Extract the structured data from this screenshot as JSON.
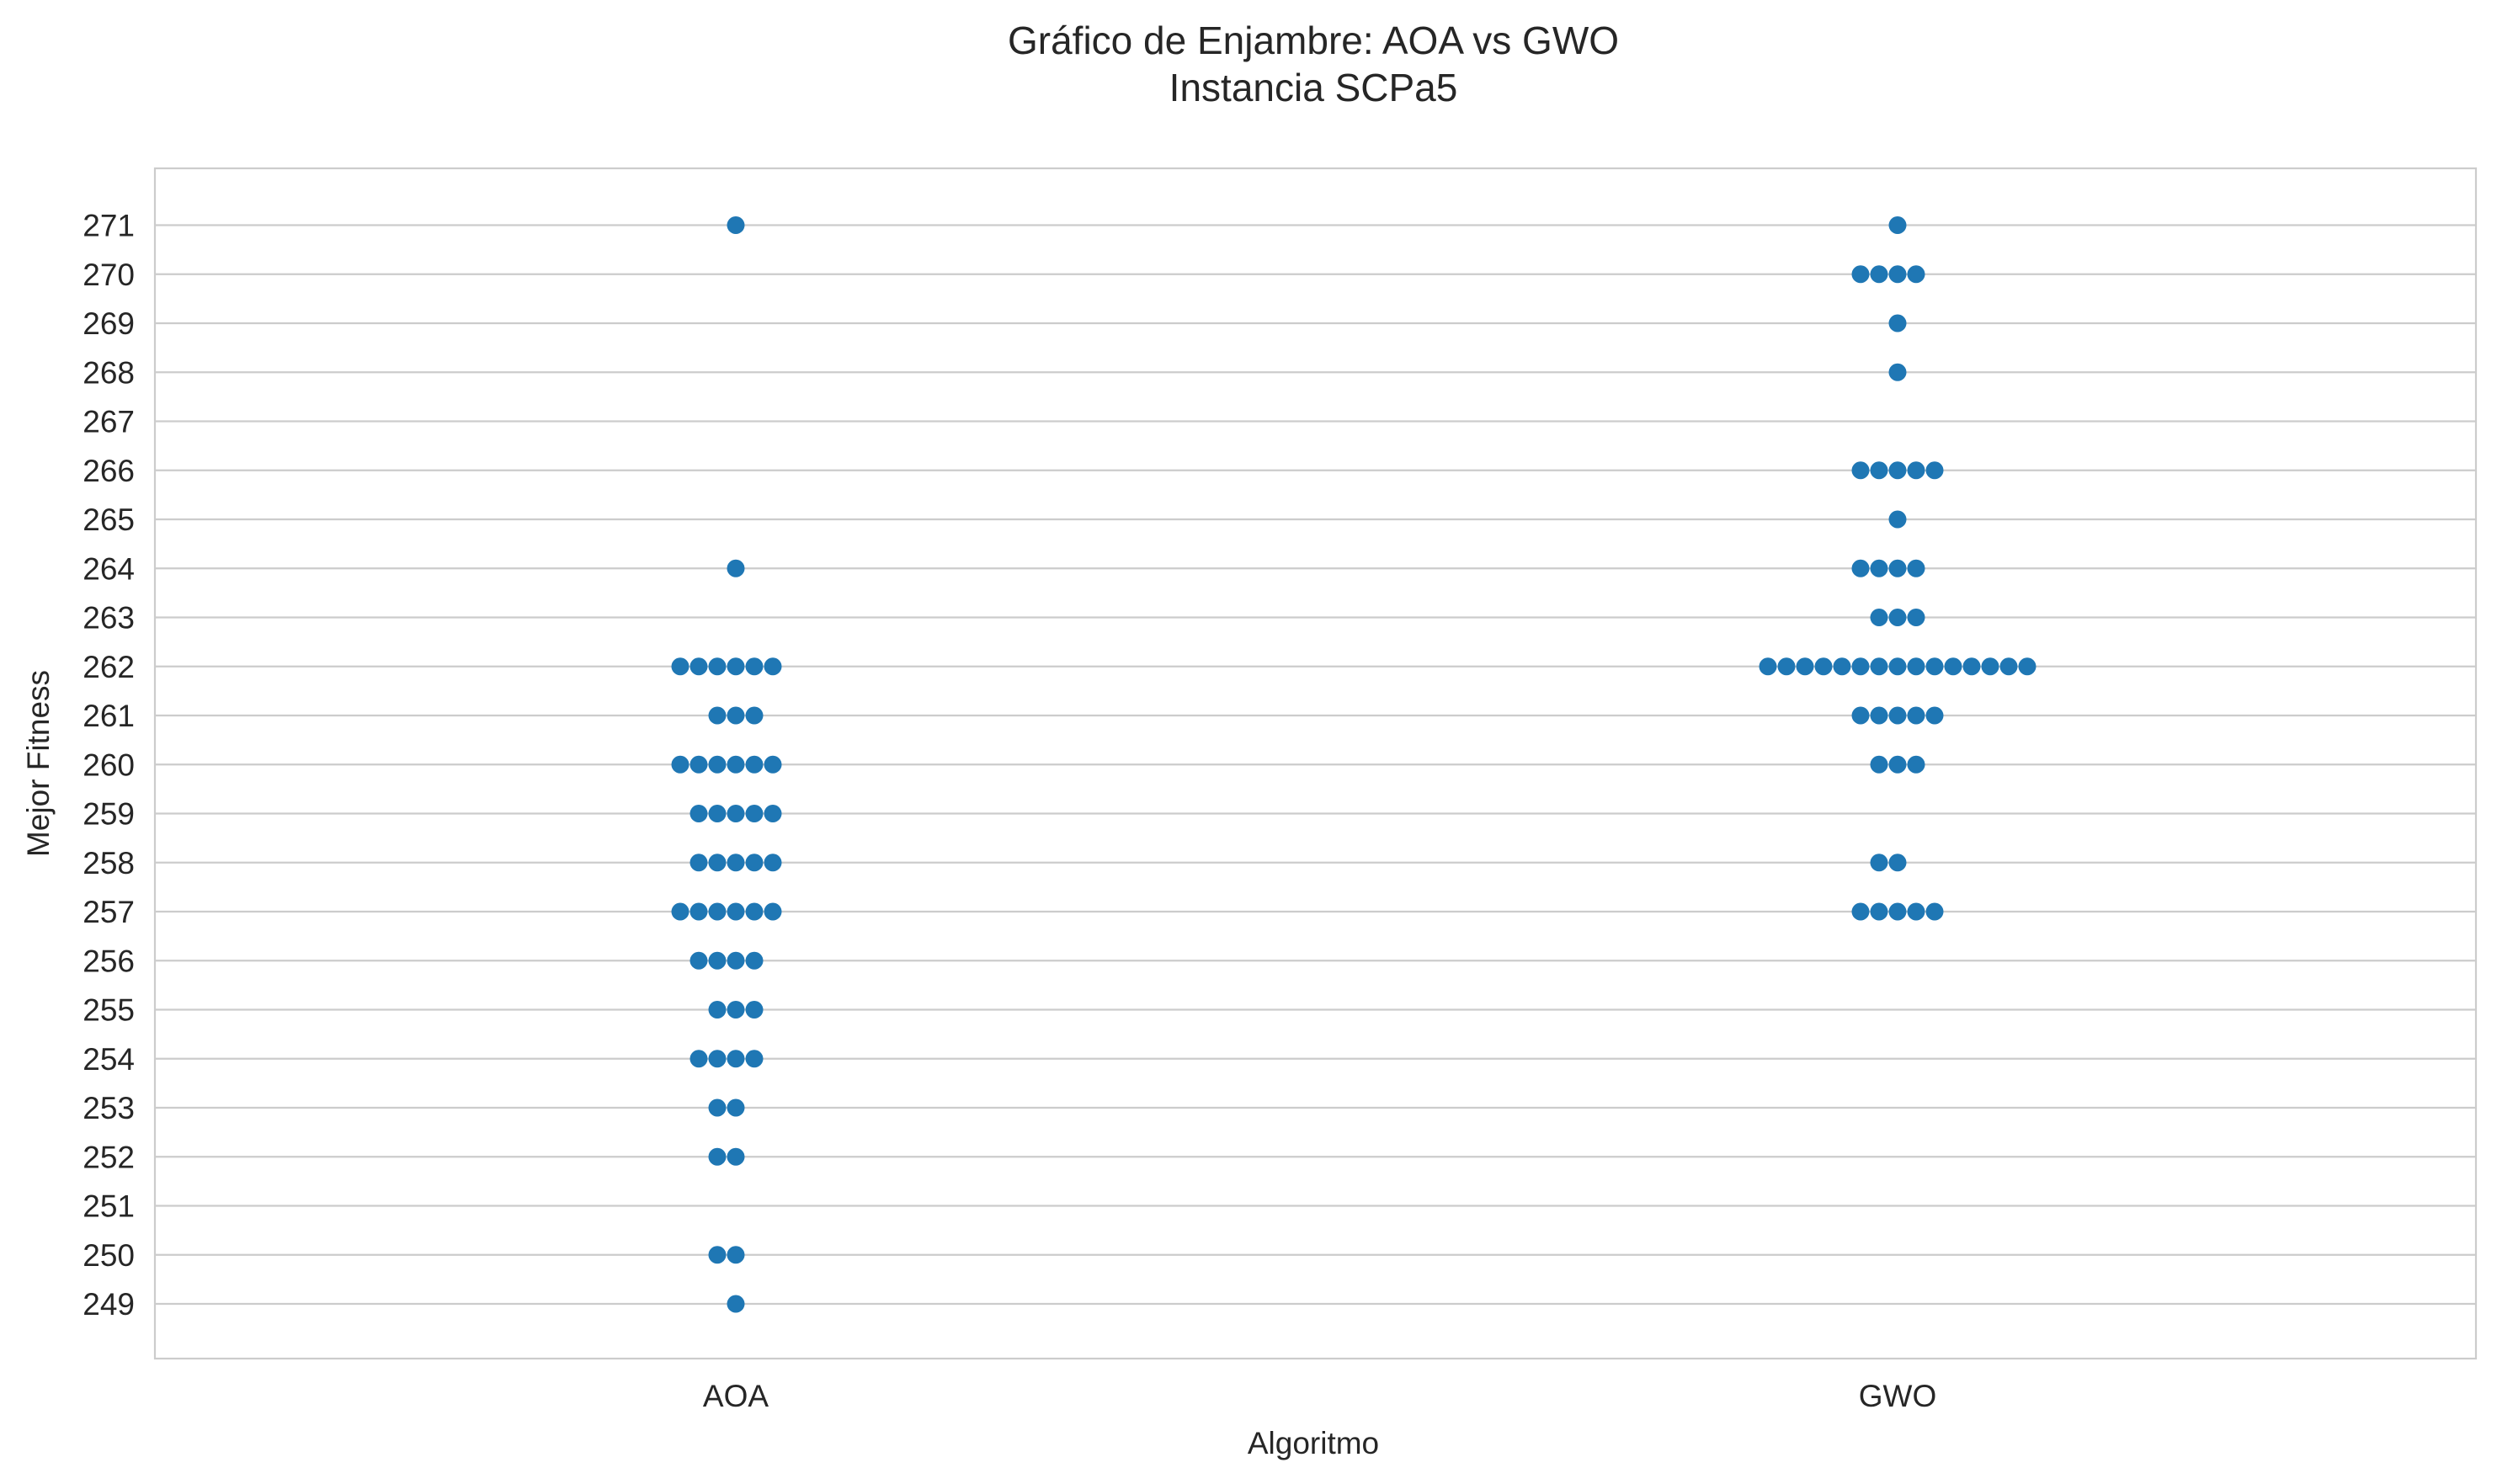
{
  "chart_data": {
    "type": "scatter",
    "style": "swarm",
    "title": "Gráfico de Enjambre: AOA vs GWO",
    "subtitle": "Instancia SCPa5",
    "xlabel": "Algoritmo",
    "ylabel": "Mejor Fitness",
    "categories": [
      "AOA",
      "GWO"
    ],
    "y_ticks": [
      249,
      250,
      251,
      252,
      253,
      254,
      255,
      256,
      257,
      258,
      259,
      260,
      261,
      262,
      263,
      264,
      265,
      266,
      267,
      268,
      269,
      270,
      271
    ],
    "ylim": [
      247.9,
      272.1
    ],
    "grid": "horizontal",
    "marker_color": "#1f77b4",
    "series": [
      {
        "category": "AOA",
        "counts": [
          {
            "y": 271,
            "n": 1
          },
          {
            "y": 264,
            "n": 1
          },
          {
            "y": 262,
            "n": 6
          },
          {
            "y": 261,
            "n": 3
          },
          {
            "y": 260,
            "n": 6
          },
          {
            "y": 259,
            "n": 5
          },
          {
            "y": 258,
            "n": 5
          },
          {
            "y": 257,
            "n": 6
          },
          {
            "y": 256,
            "n": 4
          },
          {
            "y": 255,
            "n": 3
          },
          {
            "y": 254,
            "n": 4
          },
          {
            "y": 253,
            "n": 2
          },
          {
            "y": 252,
            "n": 2
          },
          {
            "y": 250,
            "n": 2
          },
          {
            "y": 249,
            "n": 1
          }
        ]
      },
      {
        "category": "GWO",
        "counts": [
          {
            "y": 271,
            "n": 1
          },
          {
            "y": 270,
            "n": 4
          },
          {
            "y": 269,
            "n": 1
          },
          {
            "y": 268,
            "n": 1
          },
          {
            "y": 266,
            "n": 5
          },
          {
            "y": 265,
            "n": 1
          },
          {
            "y": 264,
            "n": 4
          },
          {
            "y": 263,
            "n": 3
          },
          {
            "y": 262,
            "n": 15
          },
          {
            "y": 261,
            "n": 5
          },
          {
            "y": 260,
            "n": 3
          },
          {
            "y": 258,
            "n": 2
          },
          {
            "y": 257,
            "n": 5
          }
        ]
      }
    ]
  }
}
